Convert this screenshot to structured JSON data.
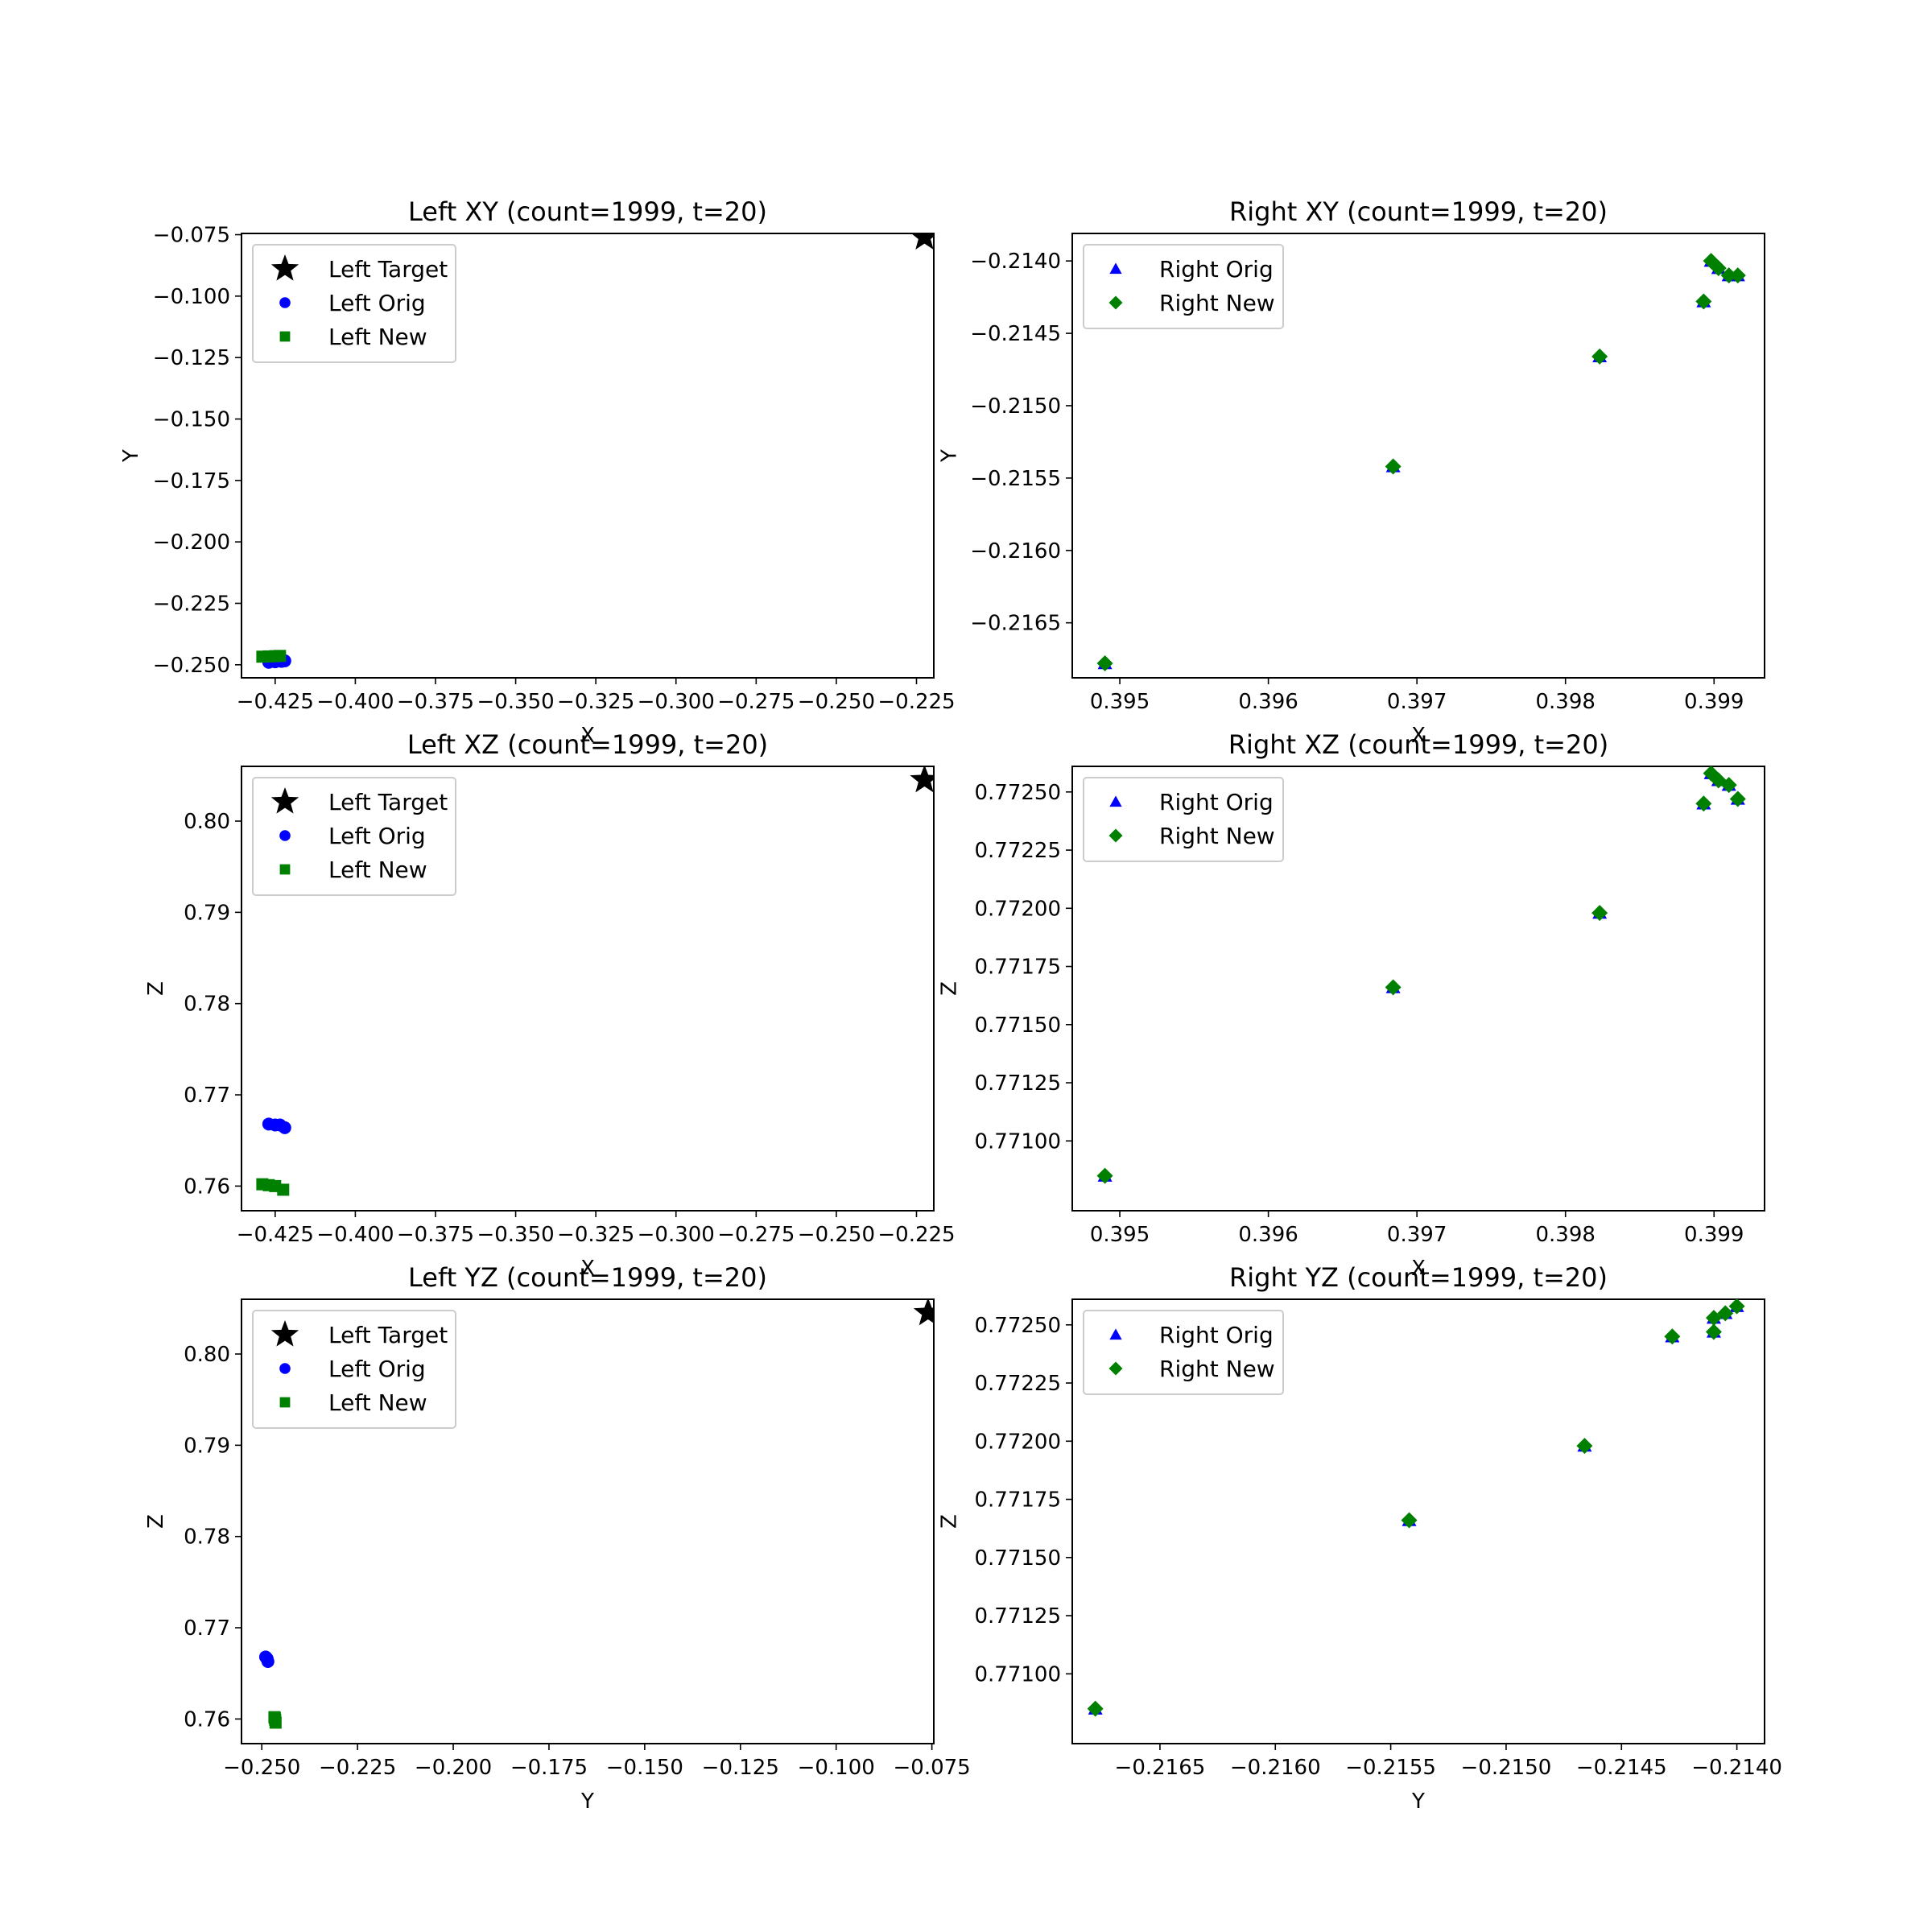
{
  "chart_data": [
    {
      "id": "left-xy",
      "type": "scatter",
      "title": "Left XY (count=1999, t=20)",
      "xlabel": "X",
      "ylabel": "Y",
      "xlim": [
        -0.4355,
        -0.2196
      ],
      "ylim": [
        -0.2553,
        -0.0745
      ],
      "xticks": [
        -0.425,
        -0.4,
        -0.375,
        -0.35,
        -0.325,
        -0.3,
        -0.275,
        -0.25,
        -0.225
      ],
      "xticklabels": [
        "−0.425",
        "−0.400",
        "−0.375",
        "−0.350",
        "−0.325",
        "−0.300",
        "−0.275",
        "−0.250",
        "−0.225"
      ],
      "yticks": [
        -0.075,
        -0.1,
        -0.125,
        -0.15,
        -0.175,
        -0.2,
        -0.225,
        -0.25
      ],
      "yticklabels": [
        "−0.075",
        "−0.100",
        "−0.125",
        "−0.150",
        "−0.175",
        "−0.200",
        "−0.225",
        "−0.250"
      ],
      "legend": "upper-left",
      "series": [
        {
          "name": "Left Target",
          "marker": "star",
          "color": "#000000",
          "x": [
            -0.2225
          ],
          "y": [
            -0.076
          ]
        },
        {
          "name": "Left Orig",
          "marker": "circle",
          "color": "#0000ff",
          "x": [
            -0.427,
            -0.425,
            -0.423,
            -0.422
          ],
          "y": [
            -0.249,
            -0.2488,
            -0.2486,
            -0.2484
          ]
        },
        {
          "name": "Left New",
          "marker": "square",
          "color": "#008000",
          "x": [
            -0.429,
            -0.427,
            -0.425,
            -0.4235
          ],
          "y": [
            -0.2467,
            -0.2466,
            -0.2465,
            -0.2464
          ]
        }
      ]
    },
    {
      "id": "right-xy",
      "type": "scatter",
      "title": "Right XY (count=1999, t=20)",
      "xlabel": "X",
      "ylabel": "Y",
      "xlim": [
        394.68,
        399.34
      ],
      "ylim": [
        -0.21688,
        -0.21381
      ],
      "x_scale": 0.001,
      "xticks": [
        395,
        396,
        397,
        398,
        399
      ],
      "xticklabels": [
        "0.395",
        "0.396",
        "0.397",
        "0.398",
        "0.399"
      ],
      "yticks": [
        -0.214,
        -0.2145,
        -0.215,
        -0.2155,
        -0.216,
        -0.2165
      ],
      "yticklabels": [
        "−0.2140",
        "−0.2145",
        "−0.2150",
        "−0.2155",
        "−0.2160",
        "−0.2165"
      ],
      "legend": "upper-left",
      "series": [
        {
          "name": "Right Orig",
          "marker": "triangle",
          "color": "#0000ff",
          "x": [
            394.9,
            396.84,
            398.23,
            398.93,
            398.98,
            399.03,
            399.1,
            399.16
          ],
          "y": [
            -0.21678,
            -0.21542,
            -0.21466,
            -0.21428,
            -0.214,
            -0.21405,
            -0.2141,
            -0.2141
          ]
        },
        {
          "name": "Right New",
          "marker": "diamond",
          "color": "#008000",
          "x": [
            394.9,
            396.84,
            398.23,
            398.93,
            398.98,
            399.03,
            399.1,
            399.16
          ],
          "y": [
            -0.21678,
            -0.21542,
            -0.21466,
            -0.21428,
            -0.214,
            -0.21405,
            -0.2141,
            -0.2141
          ]
        }
      ]
    },
    {
      "id": "left-xz",
      "type": "scatter",
      "title": "Left XZ (count=1999, t=20)",
      "xlabel": "X",
      "ylabel": "Z",
      "xlim": [
        -0.4355,
        -0.2196
      ],
      "ylim": [
        0.7573,
        0.806
      ],
      "xticks": [
        -0.425,
        -0.4,
        -0.375,
        -0.35,
        -0.325,
        -0.3,
        -0.275,
        -0.25,
        -0.225
      ],
      "xticklabels": [
        "−0.425",
        "−0.400",
        "−0.375",
        "−0.350",
        "−0.325",
        "−0.300",
        "−0.275",
        "−0.250",
        "−0.225"
      ],
      "yticks": [
        0.76,
        0.77,
        0.78,
        0.79,
        0.8
      ],
      "yticklabels": [
        "0.76",
        "0.77",
        "0.78",
        "0.79",
        "0.80"
      ],
      "legend": "upper-left",
      "series": [
        {
          "name": "Left Target",
          "marker": "star",
          "color": "#000000",
          "x": [
            -0.2225
          ],
          "y": [
            0.8045
          ]
        },
        {
          "name": "Left Orig",
          "marker": "circle",
          "color": "#0000ff",
          "x": [
            -0.427,
            -0.425,
            -0.4235,
            -0.422
          ],
          "y": [
            0.7668,
            0.7667,
            0.7667,
            0.7664
          ]
        },
        {
          "name": "Left New",
          "marker": "square",
          "color": "#008000",
          "x": [
            -0.429,
            -0.427,
            -0.425,
            -0.4225
          ],
          "y": [
            0.7602,
            0.7601,
            0.76,
            0.7596
          ]
        }
      ]
    },
    {
      "id": "right-xz",
      "type": "scatter",
      "title": "Right XZ (count=1999, t=20)",
      "xlabel": "X",
      "ylabel": "Z",
      "xlim": [
        394.68,
        399.34
      ],
      "ylim": [
        0.7707,
        0.77261
      ],
      "x_scale": 0.001,
      "xticks": [
        395,
        396,
        397,
        398,
        399
      ],
      "xticklabels": [
        "0.395",
        "0.396",
        "0.397",
        "0.398",
        "0.399"
      ],
      "yticks": [
        0.771,
        0.77125,
        0.7715,
        0.77175,
        0.772,
        0.77225,
        0.7725
      ],
      "yticklabels": [
        "0.77100",
        "0.77125",
        "0.77150",
        "0.77175",
        "0.77200",
        "0.77225",
        "0.77250"
      ],
      "legend": "upper-left",
      "series": [
        {
          "name": "Right Orig",
          "marker": "triangle",
          "color": "#0000ff",
          "x": [
            394.9,
            396.84,
            398.23,
            398.93,
            398.98,
            399.03,
            399.1,
            399.16
          ],
          "y": [
            0.77085,
            0.77166,
            0.77198,
            0.77245,
            0.77258,
            0.77255,
            0.77253,
            0.77247
          ]
        },
        {
          "name": "Right New",
          "marker": "diamond",
          "color": "#008000",
          "x": [
            394.9,
            396.84,
            398.23,
            398.93,
            398.98,
            399.03,
            399.1,
            399.16
          ],
          "y": [
            0.77085,
            0.77166,
            0.77198,
            0.77245,
            0.77258,
            0.77255,
            0.77253,
            0.77247
          ]
        }
      ]
    },
    {
      "id": "left-yz",
      "type": "scatter",
      "title": "Left YZ (count=1999, t=20)",
      "xlabel": "Y",
      "ylabel": "Z",
      "xlim": [
        -0.2553,
        -0.0745
      ],
      "ylim": [
        0.7573,
        0.806
      ],
      "xticks": [
        -0.25,
        -0.225,
        -0.2,
        -0.175,
        -0.15,
        -0.125,
        -0.1,
        -0.075
      ],
      "xticklabels": [
        "−0.250",
        "−0.225",
        "−0.200",
        "−0.175",
        "−0.150",
        "−0.125",
        "−0.100",
        "−0.075"
      ],
      "yticks": [
        0.76,
        0.77,
        0.78,
        0.79,
        0.8
      ],
      "yticklabels": [
        "0.76",
        "0.77",
        "0.78",
        "0.79",
        "0.80"
      ],
      "legend": "upper-left",
      "series": [
        {
          "name": "Left Target",
          "marker": "star",
          "color": "#000000",
          "x": [
            -0.076
          ],
          "y": [
            0.8045
          ]
        },
        {
          "name": "Left Orig",
          "marker": "circle",
          "color": "#0000ff",
          "x": [
            -0.249,
            -0.2488,
            -0.2486,
            -0.2484
          ],
          "y": [
            0.7668,
            0.7667,
            0.7666,
            0.7663
          ]
        },
        {
          "name": "Left New",
          "marker": "square",
          "color": "#008000",
          "x": [
            -0.2467,
            -0.2466,
            -0.2465,
            -0.2464
          ],
          "y": [
            0.7602,
            0.7601,
            0.7599,
            0.7596
          ]
        }
      ]
    },
    {
      "id": "right-yz",
      "type": "scatter",
      "title": "Right YZ (count=1999, t=20)",
      "xlabel": "Y",
      "ylabel": "Z",
      "xlim": [
        -0.21688,
        -0.21388
      ],
      "ylim": [
        0.7707,
        0.77261
      ],
      "xticks": [
        -0.2165,
        -0.216,
        -0.2155,
        -0.215,
        -0.2145,
        -0.214
      ],
      "xticklabels": [
        "−0.2165",
        "−0.2160",
        "−0.2155",
        "−0.2150",
        "−0.2145",
        "−0.2140"
      ],
      "yticks": [
        0.771,
        0.77125,
        0.7715,
        0.77175,
        0.772,
        0.77225,
        0.7725
      ],
      "yticklabels": [
        "0.77100",
        "0.77125",
        "0.77150",
        "0.77175",
        "0.77200",
        "0.77225",
        "0.77250"
      ],
      "legend": "upper-left",
      "series": [
        {
          "name": "Right Orig",
          "marker": "triangle",
          "color": "#0000ff",
          "x": [
            -0.21678,
            -0.21542,
            -0.21466,
            -0.21428,
            -0.2141,
            -0.2141,
            -0.21405,
            -0.214
          ],
          "y": [
            0.77085,
            0.77166,
            0.77198,
            0.77245,
            0.77247,
            0.77253,
            0.77255,
            0.77258
          ]
        },
        {
          "name": "Right New",
          "marker": "diamond",
          "color": "#008000",
          "x": [
            -0.21678,
            -0.21542,
            -0.21466,
            -0.21428,
            -0.2141,
            -0.2141,
            -0.21405,
            -0.214
          ],
          "y": [
            0.77085,
            0.77166,
            0.77198,
            0.77245,
            0.77247,
            0.77253,
            0.77255,
            0.77258
          ]
        }
      ]
    }
  ]
}
